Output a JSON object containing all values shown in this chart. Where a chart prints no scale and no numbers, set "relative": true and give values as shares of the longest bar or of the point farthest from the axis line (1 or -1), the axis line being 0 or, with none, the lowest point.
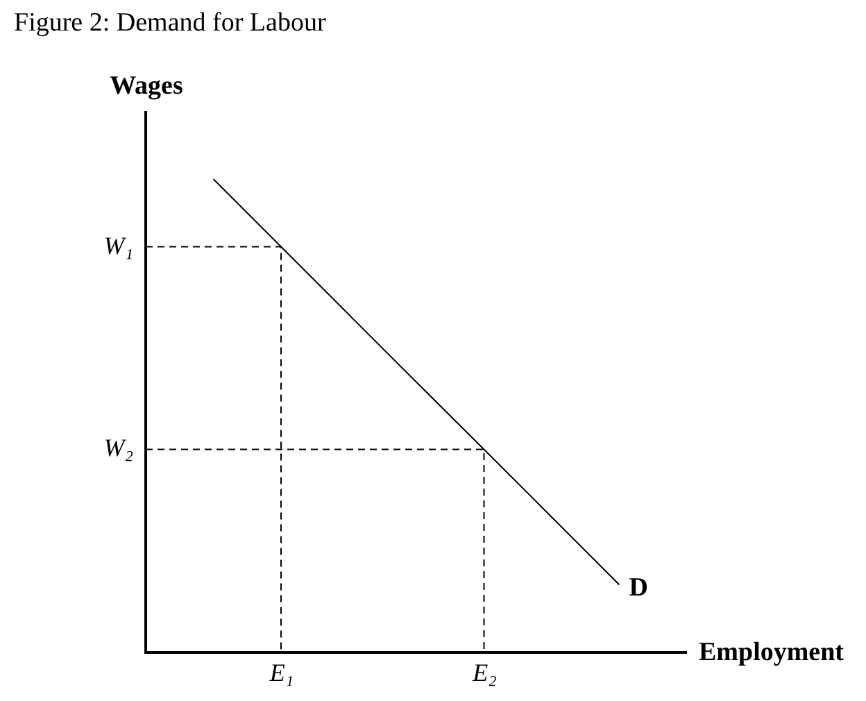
{
  "chart_data": {
    "type": "line",
    "title": "Figure 2: Demand for Labour",
    "xlabel": "Employment",
    "ylabel": "Wages",
    "relative": true,
    "categories": [
      null,
      null,
      "E₁",
      null,
      null,
      "E₂",
      null,
      null,
      null
    ],
    "series": [
      {
        "name": "D",
        "color": "#000000",
        "values": [
          null,
          1,
          0.857,
          0.714,
          0.571,
          0.429,
          0.286,
          0.143,
          null
        ],
        "line_style": "solid"
      },
      {
        "name": "W₁",
        "type": "step",
        "color": "#000000",
        "values": [
          0.857,
          0.857,
          0,
          null,
          null,
          null,
          null,
          null,
          null
        ],
        "line_style": "dashed"
      },
      {
        "name": "W₂",
        "type": "step",
        "color": "#000000",
        "values": [
          0.429,
          0.429,
          0.429,
          0.429,
          0.429,
          0,
          null,
          null,
          null
        ],
        "line_style": "dashed"
      }
    ]
  }
}
